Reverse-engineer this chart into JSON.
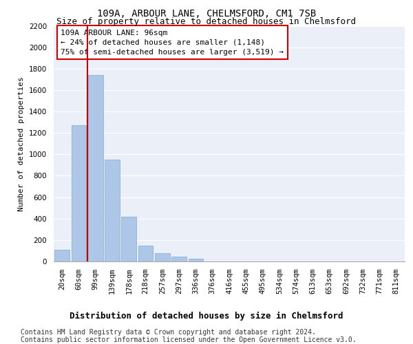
{
  "title_line1": "109A, ARBOUR LANE, CHELMSFORD, CM1 7SB",
  "title_line2": "Size of property relative to detached houses in Chelmsford",
  "xlabel": "Distribution of detached houses by size in Chelmsford",
  "ylabel": "Number of detached properties",
  "bar_labels": [
    "20sqm",
    "60sqm",
    "99sqm",
    "139sqm",
    "178sqm",
    "218sqm",
    "257sqm",
    "297sqm",
    "336sqm",
    "376sqm",
    "416sqm",
    "455sqm",
    "495sqm",
    "534sqm",
    "574sqm",
    "613sqm",
    "653sqm",
    "692sqm",
    "732sqm",
    "771sqm",
    "811sqm"
  ],
  "bar_values": [
    110,
    1270,
    1740,
    950,
    415,
    150,
    75,
    45,
    25,
    0,
    0,
    0,
    0,
    0,
    0,
    0,
    0,
    0,
    0,
    0,
    0
  ],
  "bar_color": "#aec6e8",
  "bar_edge_color": "#7aacce",
  "highlight_line_color": "#cc0000",
  "annotation_text": "109A ARBOUR LANE: 96sqm\n← 24% of detached houses are smaller (1,148)\n75% of semi-detached houses are larger (3,519) →",
  "annotation_box_facecolor": "#ffffff",
  "annotation_box_edgecolor": "#cc0000",
  "ylim": [
    0,
    2200
  ],
  "yticks": [
    0,
    200,
    400,
    600,
    800,
    1000,
    1200,
    1400,
    1600,
    1800,
    2000,
    2200
  ],
  "bg_color": "#eaeff8",
  "footer_line1": "Contains HM Land Registry data © Crown copyright and database right 2024.",
  "footer_line2": "Contains public sector information licensed under the Open Government Licence v3.0.",
  "title_fontsize": 10,
  "subtitle_fontsize": 9,
  "ylabel_fontsize": 8,
  "xlabel_fontsize": 9,
  "tick_fontsize": 7.5,
  "annotation_fontsize": 8,
  "footer_fontsize": 7
}
